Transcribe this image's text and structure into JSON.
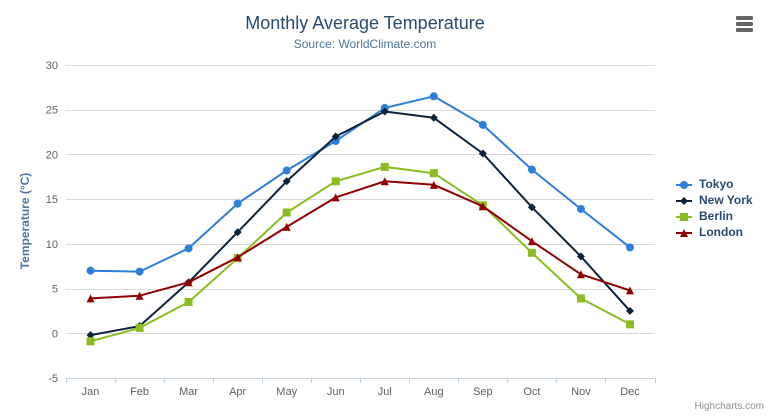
{
  "chart": {
    "credits": "Highcharts.com",
    "context_menu_icon": "hamburger-icon"
  },
  "colors": {
    "title": "#274b6d",
    "subtitle": "#4d759e",
    "axis_title": "#4d759e",
    "tick_label": "#606060",
    "gridline": "#d8d8d8",
    "axis_line": "#c0d0e0",
    "legend_text": "#274b6d",
    "credits_text": "#909090"
  },
  "chart_data": {
    "type": "line",
    "title": "Monthly Average Temperature",
    "subtitle": "Source: WorldClimate.com",
    "xlabel": "",
    "ylabel": "Temperature (°C)",
    "ylim": [
      -5,
      30
    ],
    "yticks": [
      -5,
      0,
      5,
      10,
      15,
      20,
      25,
      30
    ],
    "grid": true,
    "legend_position": "right",
    "categories": [
      "Jan",
      "Feb",
      "Mar",
      "Apr",
      "May",
      "Jun",
      "Jul",
      "Aug",
      "Sep",
      "Oct",
      "Nov",
      "Dec"
    ],
    "series": [
      {
        "name": "Tokyo",
        "color": "#2f7ed8",
        "marker": "circle",
        "values": [
          7.0,
          6.9,
          9.5,
          14.5,
          18.2,
          21.5,
          25.2,
          26.5,
          23.3,
          18.3,
          13.9,
          9.6
        ]
      },
      {
        "name": "New York",
        "color": "#0d233a",
        "marker": "diamond",
        "values": [
          -0.2,
          0.8,
          5.7,
          11.3,
          17.0,
          22.0,
          24.8,
          24.1,
          20.1,
          14.1,
          8.6,
          2.5
        ]
      },
      {
        "name": "Berlin",
        "color": "#8bbc21",
        "marker": "square",
        "values": [
          -0.9,
          0.6,
          3.5,
          8.4,
          13.5,
          17.0,
          18.6,
          17.9,
          14.3,
          9.0,
          3.9,
          1.0
        ]
      },
      {
        "name": "London",
        "color": "#910000",
        "marker": "triangle",
        "values": [
          3.9,
          4.2,
          5.7,
          8.5,
          11.9,
          15.2,
          17.0,
          16.6,
          14.2,
          10.3,
          6.6,
          4.8
        ]
      }
    ]
  }
}
